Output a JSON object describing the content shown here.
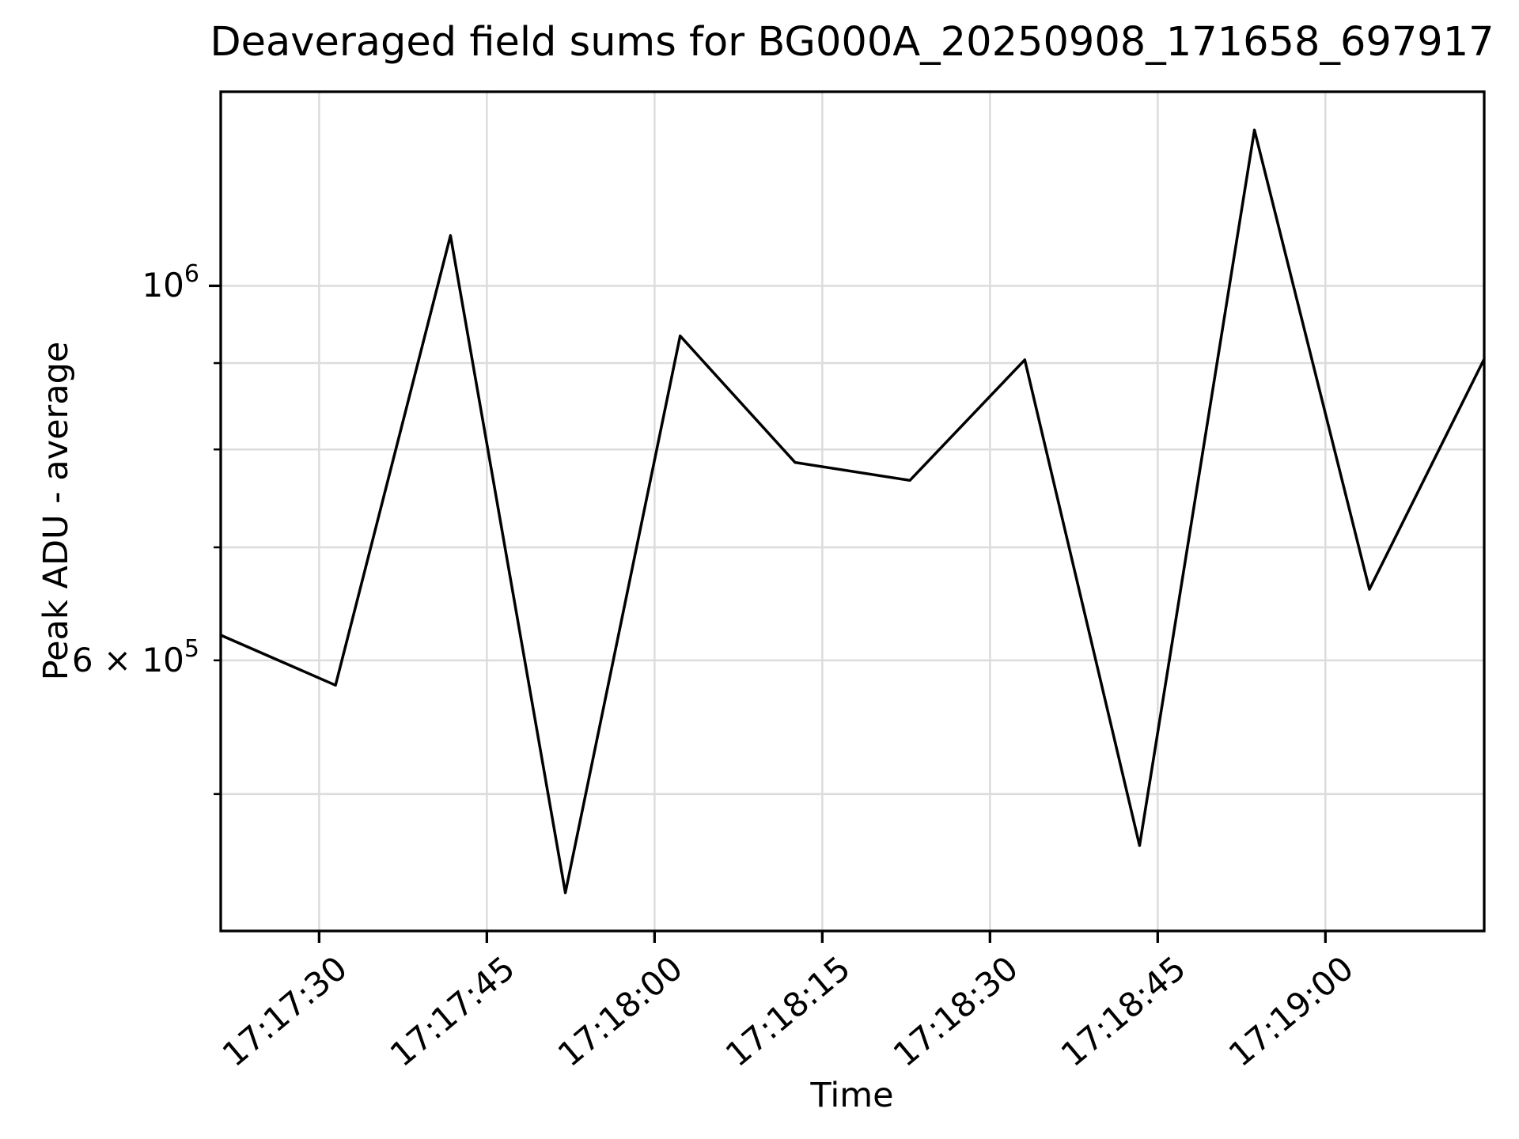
{
  "figure": {
    "title": "Deaveraged field sums for BG000A_20250908_171658_697917"
  },
  "chart_data": {
    "type": "line",
    "title": "Deaveraged field sums for BG000A_20250908_171658_697917",
    "xlabel": "Time",
    "ylabel": "Peak ADU - average",
    "yscale": "log",
    "grid": "both",
    "legend": "none",
    "line_color": "#000000",
    "grid_color": "#dcdcdc",
    "background": "#ffffff",
    "ylim": [
      414800,
      1303100
    ],
    "xlim_s": [
      0,
      113
    ],
    "x_times": [
      "17:17:21",
      "17:17:31",
      "17:17:42",
      "17:17:52",
      "17:18:02",
      "17:18:13",
      "17:18:23",
      "17:18:33",
      "17:18:44",
      "17:18:54",
      "17:19:04",
      "17:19:14"
    ],
    "t_offsets_s": [
      0,
      10.27,
      20.55,
      30.82,
      41.09,
      51.36,
      61.64,
      71.91,
      82.18,
      92.45,
      102.73,
      113
    ],
    "values": [
      621000,
      580000,
      1071000,
      437000,
      934000,
      786000,
      767000,
      904000,
      466000,
      1237000,
      661000,
      905000
    ],
    "x_ticks": [
      {
        "t": 8.8,
        "label": "17:17:30"
      },
      {
        "t": 23.8,
        "label": "17:17:45"
      },
      {
        "t": 38.8,
        "label": "17:18:00"
      },
      {
        "t": 53.8,
        "label": "17:18:15"
      },
      {
        "t": 68.8,
        "label": "17:18:30"
      },
      {
        "t": 83.8,
        "label": "17:18:45"
      },
      {
        "t": 98.8,
        "label": "17:19:00"
      }
    ],
    "y_ticks_major": [
      {
        "value": 1000000,
        "text": "10",
        "sup": "6"
      }
    ],
    "y_ticks_minor": [
      {
        "value": 900000,
        "text": "",
        "sup": ""
      },
      {
        "value": 800000,
        "text": "",
        "sup": ""
      },
      {
        "value": 700000,
        "text": "",
        "sup": ""
      },
      {
        "value": 600000,
        "text": "6 × 10",
        "sup": "5"
      },
      {
        "value": 500000,
        "text": "",
        "sup": ""
      }
    ]
  }
}
